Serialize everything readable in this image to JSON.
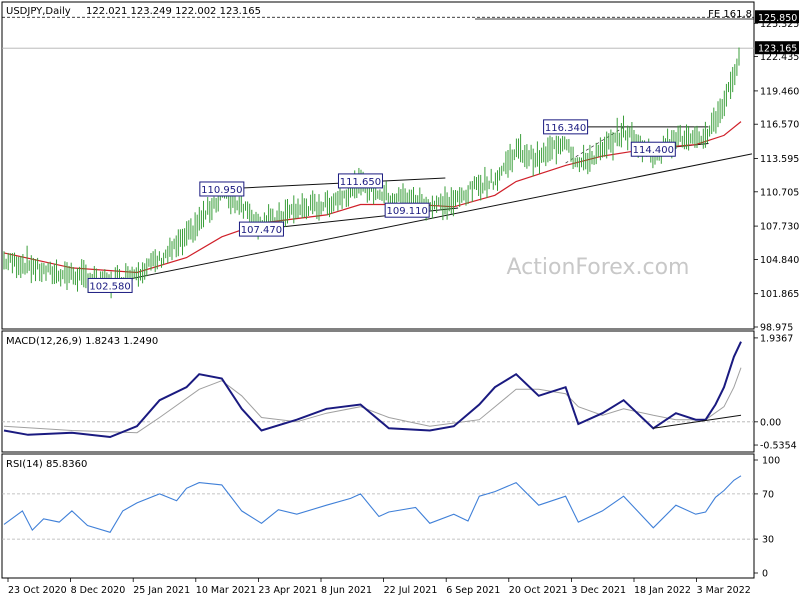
{
  "chart_data": {
    "type": "line",
    "instrument": "USDJPY,Daily",
    "ohlc": "122.021 123.249 122.002 123.165",
    "watermark": "ActionForex.com",
    "x_labels": [
      "23 Oct 2020",
      "8 Dec 2020",
      "25 Jan 2021",
      "10 Mar 2021",
      "23 Apr 2021",
      "8 Jun 2021",
      "22 Jul 2021",
      "6 Sep 2021",
      "20 Oct 2021",
      "3 Dec 2021",
      "18 Jan 2022",
      "3 Mar 2022"
    ],
    "price": {
      "y_ticks": [
        "125.325",
        "122.435",
        "119.460",
        "116.570",
        "113.595",
        "110.705",
        "107.730",
        "104.840",
        "101.865",
        "98.975"
      ],
      "ylim": [
        98.975,
        127.0
      ],
      "current": "123.165",
      "fe_label": "FE 161.8",
      "fe_level": "125.850",
      "annotations": [
        {
          "text": "110.950",
          "date": "2021-03-26",
          "value": 110.95
        },
        {
          "text": "111.650",
          "date": "2021-07-02",
          "value": 111.65
        },
        {
          "text": "107.470",
          "date": "2021-04-23",
          "value": 107.47
        },
        {
          "text": "102.580",
          "date": "2021-01-06",
          "value": 102.58
        },
        {
          "text": "109.110",
          "date": "2021-08-04",
          "value": 109.11
        },
        {
          "text": "116.340",
          "date": "2021-11-24",
          "value": 116.34
        },
        {
          "text": "114.400",
          "date": "2022-01-25",
          "value": 114.4
        }
      ],
      "close": [
        {
          "d": "2020-10-23",
          "v": 104.7
        },
        {
          "d": "2020-11-09",
          "v": 104.4
        },
        {
          "d": "2020-11-20",
          "v": 103.8
        },
        {
          "d": "2020-12-10",
          "v": 103.5
        },
        {
          "d": "2021-01-06",
          "v": 102.8
        },
        {
          "d": "2021-01-25",
          "v": 103.8
        },
        {
          "d": "2021-02-10",
          "v": 104.8
        },
        {
          "d": "2021-03-01",
          "v": 106.7
        },
        {
          "d": "2021-03-26",
          "v": 110.6
        },
        {
          "d": "2021-04-09",
          "v": 109.6
        },
        {
          "d": "2021-04-23",
          "v": 107.8
        },
        {
          "d": "2021-05-18",
          "v": 109.2
        },
        {
          "d": "2021-06-08",
          "v": 109.6
        },
        {
          "d": "2021-07-02",
          "v": 111.3
        },
        {
          "d": "2021-07-22",
          "v": 110.3
        },
        {
          "d": "2021-08-10",
          "v": 110.0
        },
        {
          "d": "2021-08-20",
          "v": 109.5
        },
        {
          "d": "2021-09-06",
          "v": 109.8
        },
        {
          "d": "2021-09-24",
          "v": 111.4
        },
        {
          "d": "2021-10-05",
          "v": 111.7
        },
        {
          "d": "2021-10-20",
          "v": 114.3
        },
        {
          "d": "2021-11-05",
          "v": 113.5
        },
        {
          "d": "2021-11-24",
          "v": 115.3
        },
        {
          "d": "2021-12-03",
          "v": 113.0
        },
        {
          "d": "2021-12-20",
          "v": 114.2
        },
        {
          "d": "2022-01-04",
          "v": 116.0
        },
        {
          "d": "2022-01-25",
          "v": 113.9
        },
        {
          "d": "2022-02-10",
          "v": 115.5
        },
        {
          "d": "2022-02-24",
          "v": 115.0
        },
        {
          "d": "2022-03-03",
          "v": 115.6
        },
        {
          "d": "2022-03-10",
          "v": 117.0
        },
        {
          "d": "2022-03-16",
          "v": 118.5
        },
        {
          "d": "2022-03-23",
          "v": 120.8
        },
        {
          "d": "2022-03-28",
          "v": 123.2
        }
      ],
      "ma": [
        {
          "d": "2020-10-23",
          "v": 105.4
        },
        {
          "d": "2020-12-10",
          "v": 104.1
        },
        {
          "d": "2021-01-25",
          "v": 103.7
        },
        {
          "d": "2021-03-01",
          "v": 105.0
        },
        {
          "d": "2021-03-26",
          "v": 106.8
        },
        {
          "d": "2021-04-23",
          "v": 108.0
        },
        {
          "d": "2021-06-08",
          "v": 108.7
        },
        {
          "d": "2021-07-02",
          "v": 109.6
        },
        {
          "d": "2021-08-10",
          "v": 109.6
        },
        {
          "d": "2021-09-06",
          "v": 109.4
        },
        {
          "d": "2021-10-05",
          "v": 110.4
        },
        {
          "d": "2021-10-20",
          "v": 111.6
        },
        {
          "d": "2021-11-24",
          "v": 113.0
        },
        {
          "d": "2021-12-20",
          "v": 113.8
        },
        {
          "d": "2022-01-25",
          "v": 114.5
        },
        {
          "d": "2022-02-24",
          "v": 114.8
        },
        {
          "d": "2022-03-16",
          "v": 115.6
        },
        {
          "d": "2022-03-28",
          "v": 116.8
        }
      ],
      "trendlines": [
        {
          "name": "long-support",
          "points": [
            {
              "d": "2021-01-06",
              "v": 102.8
            },
            {
              "d": "2022-03-28",
              "v": 113.8
            }
          ]
        },
        {
          "name": "upper-channel",
          "points": [
            {
              "d": "2021-03-26",
              "v": 110.95
            },
            {
              "d": "2021-08-31",
              "v": 111.9
            }
          ]
        },
        {
          "name": "lower-channel",
          "points": [
            {
              "d": "2021-04-23",
              "v": 107.47
            },
            {
              "d": "2021-09-09",
              "v": 109.3
            }
          ]
        },
        {
          "name": "resistance-116",
          "points": [
            {
              "d": "2021-11-24",
              "v": 116.34
            },
            {
              "d": "2022-03-05",
              "v": 116.34
            }
          ]
        },
        {
          "name": "support-114",
          "points": [
            {
              "d": "2022-01-25",
              "v": 114.4
            },
            {
              "d": "2022-03-05",
              "v": 114.9
            }
          ]
        }
      ]
    },
    "macd": {
      "label": "MACD(12,26,9) 1.8243 1.2490",
      "y_ticks": [
        "1.9367",
        "0.00",
        "-0.5354"
      ],
      "ylim": [
        -0.65,
        2.05
      ],
      "line": [
        {
          "d": "2020-10-23",
          "v": -0.2
        },
        {
          "d": "2020-11-09",
          "v": -0.3
        },
        {
          "d": "2020-12-10",
          "v": -0.25
        },
        {
          "d": "2021-01-06",
          "v": -0.35
        },
        {
          "d": "2021-01-25",
          "v": -0.1
        },
        {
          "d": "2021-02-10",
          "v": 0.5
        },
        {
          "d": "2021-03-01",
          "v": 0.8
        },
        {
          "d": "2021-03-10",
          "v": 1.1
        },
        {
          "d": "2021-03-26",
          "v": 1.0
        },
        {
          "d": "2021-04-09",
          "v": 0.3
        },
        {
          "d": "2021-04-23",
          "v": -0.2
        },
        {
          "d": "2021-05-18",
          "v": 0.05
        },
        {
          "d": "2021-06-08",
          "v": 0.3
        },
        {
          "d": "2021-07-02",
          "v": 0.4
        },
        {
          "d": "2021-07-22",
          "v": -0.15
        },
        {
          "d": "2021-08-20",
          "v": -0.2
        },
        {
          "d": "2021-09-06",
          "v": -0.1
        },
        {
          "d": "2021-09-24",
          "v": 0.4
        },
        {
          "d": "2021-10-05",
          "v": 0.8
        },
        {
          "d": "2021-10-20",
          "v": 1.1
        },
        {
          "d": "2021-11-05",
          "v": 0.6
        },
        {
          "d": "2021-11-24",
          "v": 0.8
        },
        {
          "d": "2021-12-03",
          "v": -0.05
        },
        {
          "d": "2021-12-20",
          "v": 0.2
        },
        {
          "d": "2022-01-04",
          "v": 0.5
        },
        {
          "d": "2022-01-25",
          "v": -0.15
        },
        {
          "d": "2022-02-10",
          "v": 0.2
        },
        {
          "d": "2022-02-24",
          "v": 0.05
        },
        {
          "d": "2022-03-03",
          "v": 0.05
        },
        {
          "d": "2022-03-10",
          "v": 0.4
        },
        {
          "d": "2022-03-16",
          "v": 0.8
        },
        {
          "d": "2022-03-23",
          "v": 1.5
        },
        {
          "d": "2022-03-28",
          "v": 1.85
        }
      ],
      "signal": [
        {
          "d": "2020-10-23",
          "v": -0.1
        },
        {
          "d": "2020-12-10",
          "v": -0.2
        },
        {
          "d": "2021-01-25",
          "v": -0.25
        },
        {
          "d": "2021-02-10",
          "v": 0.1
        },
        {
          "d": "2021-03-10",
          "v": 0.75
        },
        {
          "d": "2021-03-26",
          "v": 0.95
        },
        {
          "d": "2021-04-09",
          "v": 0.6
        },
        {
          "d": "2021-04-23",
          "v": 0.1
        },
        {
          "d": "2021-05-18",
          "v": 0.0
        },
        {
          "d": "2021-06-08",
          "v": 0.2
        },
        {
          "d": "2021-07-02",
          "v": 0.35
        },
        {
          "d": "2021-07-22",
          "v": 0.1
        },
        {
          "d": "2021-08-20",
          "v": -0.1
        },
        {
          "d": "2021-09-24",
          "v": 0.05
        },
        {
          "d": "2021-10-20",
          "v": 0.75
        },
        {
          "d": "2021-11-05",
          "v": 0.75
        },
        {
          "d": "2021-11-24",
          "v": 0.65
        },
        {
          "d": "2021-12-03",
          "v": 0.35
        },
        {
          "d": "2021-12-20",
          "v": 0.15
        },
        {
          "d": "2022-01-04",
          "v": 0.3
        },
        {
          "d": "2022-01-25",
          "v": 0.15
        },
        {
          "d": "2022-02-10",
          "v": 0.05
        },
        {
          "d": "2022-03-03",
          "v": 0.05
        },
        {
          "d": "2022-03-16",
          "v": 0.35
        },
        {
          "d": "2022-03-23",
          "v": 0.8
        },
        {
          "d": "2022-03-28",
          "v": 1.25
        }
      ],
      "trendline": [
        {
          "d": "2022-01-25",
          "v": -0.15
        },
        {
          "d": "2022-03-28",
          "v": 0.15
        }
      ]
    },
    "rsi": {
      "label": "RSI(14) 85.8360",
      "y_ticks": [
        "100",
        "70",
        "30",
        "0"
      ],
      "ylim": [
        0,
        100
      ],
      "series": [
        {
          "d": "2020-10-23",
          "v": 43
        },
        {
          "d": "2020-11-05",
          "v": 55
        },
        {
          "d": "2020-11-12",
          "v": 38
        },
        {
          "d": "2020-11-20",
          "v": 48
        },
        {
          "d": "2020-12-01",
          "v": 45
        },
        {
          "d": "2020-12-10",
          "v": 55
        },
        {
          "d": "2020-12-21",
          "v": 42
        },
        {
          "d": "2021-01-06",
          "v": 36
        },
        {
          "d": "2021-01-15",
          "v": 55
        },
        {
          "d": "2021-01-25",
          "v": 62
        },
        {
          "d": "2021-02-10",
          "v": 70
        },
        {
          "d": "2021-02-22",
          "v": 64
        },
        {
          "d": "2021-03-01",
          "v": 75
        },
        {
          "d": "2021-03-10",
          "v": 80
        },
        {
          "d": "2021-03-26",
          "v": 78
        },
        {
          "d": "2021-04-09",
          "v": 55
        },
        {
          "d": "2021-04-23",
          "v": 44
        },
        {
          "d": "2021-05-05",
          "v": 56
        },
        {
          "d": "2021-05-18",
          "v": 52
        },
        {
          "d": "2021-06-08",
          "v": 60
        },
        {
          "d": "2021-06-25",
          "v": 66
        },
        {
          "d": "2021-07-02",
          "v": 70
        },
        {
          "d": "2021-07-15",
          "v": 50
        },
        {
          "d": "2021-07-22",
          "v": 54
        },
        {
          "d": "2021-08-10",
          "v": 58
        },
        {
          "d": "2021-08-20",
          "v": 44
        },
        {
          "d": "2021-09-06",
          "v": 52
        },
        {
          "d": "2021-09-16",
          "v": 46
        },
        {
          "d": "2021-09-24",
          "v": 68
        },
        {
          "d": "2021-10-05",
          "v": 72
        },
        {
          "d": "2021-10-20",
          "v": 80
        },
        {
          "d": "2021-11-05",
          "v": 60
        },
        {
          "d": "2021-11-24",
          "v": 68
        },
        {
          "d": "2021-12-03",
          "v": 45
        },
        {
          "d": "2021-12-20",
          "v": 55
        },
        {
          "d": "2022-01-04",
          "v": 68
        },
        {
          "d": "2022-01-25",
          "v": 40
        },
        {
          "d": "2022-02-10",
          "v": 60
        },
        {
          "d": "2022-02-24",
          "v": 52
        },
        {
          "d": "2022-03-03",
          "v": 54
        },
        {
          "d": "2022-03-10",
          "v": 67
        },
        {
          "d": "2022-03-16",
          "v": 73
        },
        {
          "d": "2022-03-23",
          "v": 82
        },
        {
          "d": "2022-03-28",
          "v": 86
        }
      ]
    },
    "colors": {
      "price": "#3a9e3a",
      "ma": "#d0202a",
      "macd": "#1a1a80",
      "signal": "#a0a0a0",
      "rsi": "#4080d8",
      "label_box": "#1a1a80",
      "trendline": "#111111",
      "grid": "#b0b0b0"
    }
  }
}
